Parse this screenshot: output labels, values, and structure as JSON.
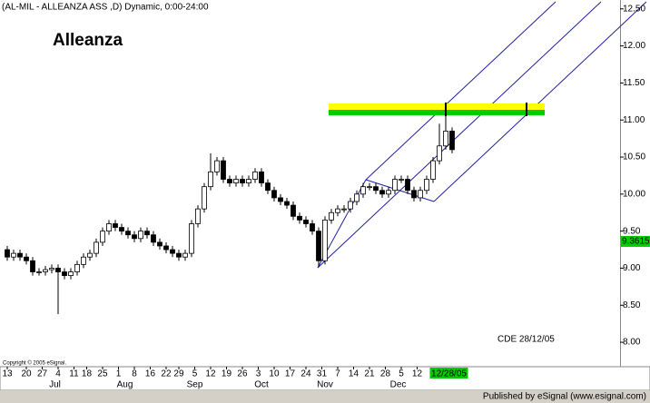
{
  "chart_data": {
    "type": "candlestick",
    "title": "(AL-MIL - ALLEANZA ASS ,D) Dynamic, 0:00-24:00",
    "annotations": [
      "Alleanza",
      "CDE 28/12/05",
      "Copyright © 2005 eSignal."
    ],
    "footer": "Published by eSignal (www.esignal.com)",
    "open": [
      9.25,
      9.15,
      9.2,
      9.15,
      9.1,
      8.95,
      8.95,
      8.98,
      9.0,
      8.95,
      8.9,
      8.95,
      9.05,
      9.15,
      9.2,
      9.35,
      9.5,
      9.6,
      9.55,
      9.5,
      9.45,
      9.4,
      9.5,
      9.45,
      9.35,
      9.3,
      9.25,
      9.2,
      9.15,
      9.2,
      9.6,
      9.8,
      10.1,
      10.3,
      10.45,
      10.2,
      10.15,
      10.2,
      10.15,
      10.2,
      10.3,
      10.15,
      10.05,
      9.95,
      9.9,
      9.85,
      9.7,
      9.65,
      9.6,
      9.5,
      9.1,
      9.65,
      9.75,
      9.8,
      9.8,
      9.9,
      10.0,
      10.1,
      10.1,
      10.05,
      10.0,
      10.05,
      10.2,
      10.2,
      10.05,
      9.95,
      10.05,
      10.2,
      10.45,
      10.65,
      10.85
    ],
    "high": [
      9.3,
      9.25,
      9.25,
      9.2,
      9.15,
      9.0,
      9.03,
      9.05,
      9.05,
      9.0,
      9.0,
      9.1,
      9.2,
      9.25,
      9.4,
      9.55,
      9.65,
      9.65,
      9.6,
      9.55,
      9.5,
      9.55,
      9.55,
      9.5,
      9.4,
      9.35,
      9.3,
      9.25,
      9.25,
      9.65,
      9.85,
      10.15,
      10.55,
      10.5,
      10.5,
      10.25,
      10.25,
      10.25,
      10.25,
      10.35,
      10.35,
      10.2,
      10.1,
      10.0,
      9.95,
      9.9,
      9.75,
      9.7,
      9.65,
      9.55,
      9.7,
      9.8,
      9.85,
      9.85,
      9.95,
      10.05,
      10.15,
      10.15,
      10.15,
      10.1,
      10.1,
      10.25,
      10.25,
      10.25,
      10.1,
      10.1,
      10.25,
      10.5,
      10.95,
      11.2,
      10.9
    ],
    "low": [
      9.1,
      9.1,
      9.1,
      9.05,
      8.9,
      8.9,
      8.9,
      8.93,
      8.38,
      8.85,
      8.85,
      8.9,
      9.0,
      9.1,
      9.15,
      9.3,
      9.45,
      9.5,
      9.45,
      9.4,
      9.35,
      9.35,
      9.4,
      9.3,
      9.25,
      9.2,
      9.15,
      9.1,
      9.1,
      9.15,
      9.55,
      9.75,
      10.05,
      10.25,
      10.15,
      10.1,
      10.1,
      10.1,
      10.1,
      10.15,
      10.1,
      10.0,
      9.9,
      9.85,
      9.8,
      9.65,
      9.6,
      9.55,
      9.45,
      9.02,
      9.05,
      9.6,
      9.7,
      9.75,
      9.75,
      9.85,
      9.95,
      10.05,
      10.0,
      9.95,
      9.95,
      10.0,
      10.15,
      10.0,
      9.9,
      9.9,
      10.0,
      10.15,
      10.4,
      10.6,
      10.55
    ],
    "close": [
      9.15,
      9.2,
      9.15,
      9.1,
      8.95,
      8.95,
      8.98,
      9.0,
      8.95,
      8.9,
      8.95,
      9.05,
      9.15,
      9.2,
      9.35,
      9.5,
      9.6,
      9.55,
      9.5,
      9.45,
      9.4,
      9.5,
      9.45,
      9.35,
      9.3,
      9.25,
      9.2,
      9.15,
      9.2,
      9.6,
      9.8,
      10.1,
      10.3,
      10.45,
      10.2,
      10.15,
      10.2,
      10.15,
      10.2,
      10.3,
      10.15,
      10.05,
      9.95,
      9.9,
      9.85,
      9.7,
      9.65,
      9.6,
      9.5,
      9.1,
      9.65,
      9.75,
      9.8,
      9.8,
      9.9,
      10.0,
      10.1,
      10.1,
      10.05,
      10.0,
      10.05,
      10.2,
      10.2,
      10.05,
      9.95,
      10.05,
      10.2,
      10.45,
      10.65,
      10.85,
      10.6
    ],
    "xlim": [
      -1.143,
      96.43
    ],
    "xticks": [
      {
        "value": 0,
        "label": "13"
      },
      {
        "value": 3,
        "label": "20"
      },
      {
        "value": 5.5,
        "label": "27"
      },
      {
        "value": 8,
        "label": "4"
      },
      {
        "value": 10.5,
        "label": "11"
      },
      {
        "value": 12.5,
        "label": "18"
      },
      {
        "value": 15,
        "label": "25"
      },
      {
        "value": 17.5,
        "label": "1"
      },
      {
        "value": 20,
        "label": "8"
      },
      {
        "value": 22.5,
        "label": "16"
      },
      {
        "value": 25,
        "label": "22"
      },
      {
        "value": 27,
        "label": "29"
      },
      {
        "value": 29.5,
        "label": "5"
      },
      {
        "value": 32,
        "label": "12"
      },
      {
        "value": 34.5,
        "label": "19"
      },
      {
        "value": 37,
        "label": "26"
      },
      {
        "value": 39.5,
        "label": "3"
      },
      {
        "value": 42,
        "label": "10"
      },
      {
        "value": 44.5,
        "label": "17"
      },
      {
        "value": 47,
        "label": "24"
      },
      {
        "value": 49.5,
        "label": "31"
      },
      {
        "value": 52,
        "label": "7"
      },
      {
        "value": 54.5,
        "label": "14"
      },
      {
        "value": 57,
        "label": "21"
      },
      {
        "value": 59.5,
        "label": "28"
      },
      {
        "value": 62,
        "label": "5"
      },
      {
        "value": 64.5,
        "label": "12"
      }
    ],
    "months": [
      {
        "value": 7.5,
        "label": "Jul"
      },
      {
        "value": 18.5,
        "label": "Aug"
      },
      {
        "value": 29.5,
        "label": "Sep"
      },
      {
        "value": 40,
        "label": "Oct"
      },
      {
        "value": 50,
        "label": "Nov"
      },
      {
        "value": 61.5,
        "label": "Dec"
      }
    ],
    "date_marker": {
      "value": 69.5,
      "label": "12/28/05"
    },
    "ylim": [
      7.67,
      12.62
    ],
    "yticks": [
      {
        "value": 8,
        "label": "8.00"
      },
      {
        "value": 8.5,
        "label": "8.50"
      },
      {
        "value": 9,
        "label": "9.00"
      },
      {
        "value": 9.5,
        "label": "9.50"
      },
      {
        "value": 10,
        "label": "10.00"
      },
      {
        "value": 10.5,
        "label": "10.50"
      },
      {
        "value": 11,
        "label": "11.00"
      },
      {
        "value": 11.5,
        "label": "11.50"
      },
      {
        "value": 12,
        "label": "12.00"
      },
      {
        "value": 12.5,
        "label": "12.50"
      }
    ],
    "price_marker": 9.3615,
    "up_color": "#ffffff",
    "down_color": "#000000",
    "marker_color": "#00cc00"
  }
}
